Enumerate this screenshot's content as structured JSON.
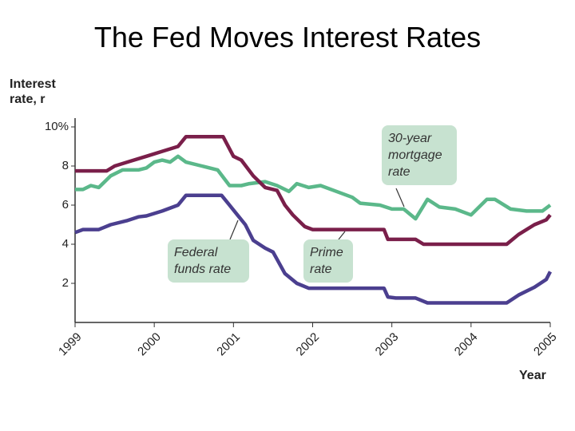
{
  "chart_data": {
    "type": "line",
    "title": "The Fed Moves Interest Rates",
    "y_label": "Interest rate, r",
    "x_label": "Year",
    "xlim": [
      1999,
      2005
    ],
    "xticks": [
      1999,
      2000,
      2001,
      2002,
      2003,
      2004,
      2005
    ],
    "ylim": [
      0,
      10
    ],
    "yticks": [
      2,
      4,
      6,
      8,
      {
        "value": 10,
        "label": "10%"
      }
    ],
    "grid": false,
    "series": [
      {
        "name": "30-year mortgage rate",
        "color": "#5bb88a",
        "x": [
          1999.0,
          1999.1,
          1999.2,
          1999.3,
          1999.45,
          1999.6,
          1999.8,
          1999.9,
          2000.0,
          2000.1,
          2000.2,
          2000.3,
          2000.4,
          2000.6,
          2000.8,
          2000.95,
          2001.1,
          2001.2,
          2001.4,
          2001.55,
          2001.7,
          2001.8,
          2001.95,
          2002.1,
          2002.3,
          2002.5,
          2002.6,
          2002.85,
          2003.0,
          2003.15,
          2003.3,
          2003.45,
          2003.6,
          2003.8,
          2004.0,
          2004.2,
          2004.3,
          2004.5,
          2004.7,
          2004.9,
          2005.0
        ],
        "values": [
          6.8,
          6.8,
          7.0,
          6.9,
          7.5,
          7.8,
          7.8,
          7.9,
          8.2,
          8.3,
          8.2,
          8.5,
          8.2,
          8.0,
          7.8,
          7.0,
          7.0,
          7.1,
          7.2,
          7.0,
          6.7,
          7.1,
          6.9,
          7.0,
          6.7,
          6.4,
          6.1,
          6.0,
          5.8,
          5.8,
          5.3,
          6.3,
          5.9,
          5.8,
          5.5,
          6.3,
          6.3,
          5.8,
          5.7,
          5.7,
          6.0
        ]
      },
      {
        "name": "Federal funds rate",
        "color": "#4b3f8f",
        "x": [
          1999.0,
          1999.1,
          1999.3,
          1999.45,
          1999.65,
          1999.8,
          1999.9,
          2000.1,
          2000.3,
          2000.4,
          2000.6,
          2000.85,
          2000.95,
          2001.05,
          2001.15,
          2001.25,
          2001.4,
          2001.5,
          2001.65,
          2001.8,
          2001.95,
          2002.9,
          2002.95,
          2003.05,
          2003.3,
          2003.45,
          2004.45,
          2004.6,
          2004.8,
          2004.95,
          2005.0
        ],
        "values": [
          4.6,
          4.75,
          4.75,
          5.0,
          5.2,
          5.4,
          5.45,
          5.7,
          6.0,
          6.5,
          6.5,
          6.5,
          6.0,
          5.5,
          5.0,
          4.2,
          3.8,
          3.6,
          2.5,
          2.0,
          1.75,
          1.75,
          1.3,
          1.25,
          1.25,
          1.0,
          1.0,
          1.4,
          1.8,
          2.2,
          2.6
        ]
      },
      {
        "name": "Prime rate",
        "color": "#7a1f4a",
        "x": [
          1999.0,
          1999.4,
          1999.5,
          1999.7,
          1999.9,
          2000.1,
          2000.3,
          2000.4,
          2000.87,
          2001.0,
          2001.1,
          2001.25,
          2001.4,
          2001.55,
          2001.65,
          2001.75,
          2001.9,
          2002.0,
          2002.9,
          2002.95,
          2003.3,
          2003.4,
          2004.45,
          2004.6,
          2004.8,
          2004.95,
          2005.0
        ],
        "values": [
          7.75,
          7.75,
          8.0,
          8.25,
          8.5,
          8.75,
          9.0,
          9.5,
          9.5,
          8.5,
          8.3,
          7.5,
          6.9,
          6.75,
          6.0,
          5.5,
          4.9,
          4.75,
          4.75,
          4.25,
          4.25,
          4.0,
          4.0,
          4.5,
          5.0,
          5.25,
          5.5
        ]
      }
    ]
  }
}
